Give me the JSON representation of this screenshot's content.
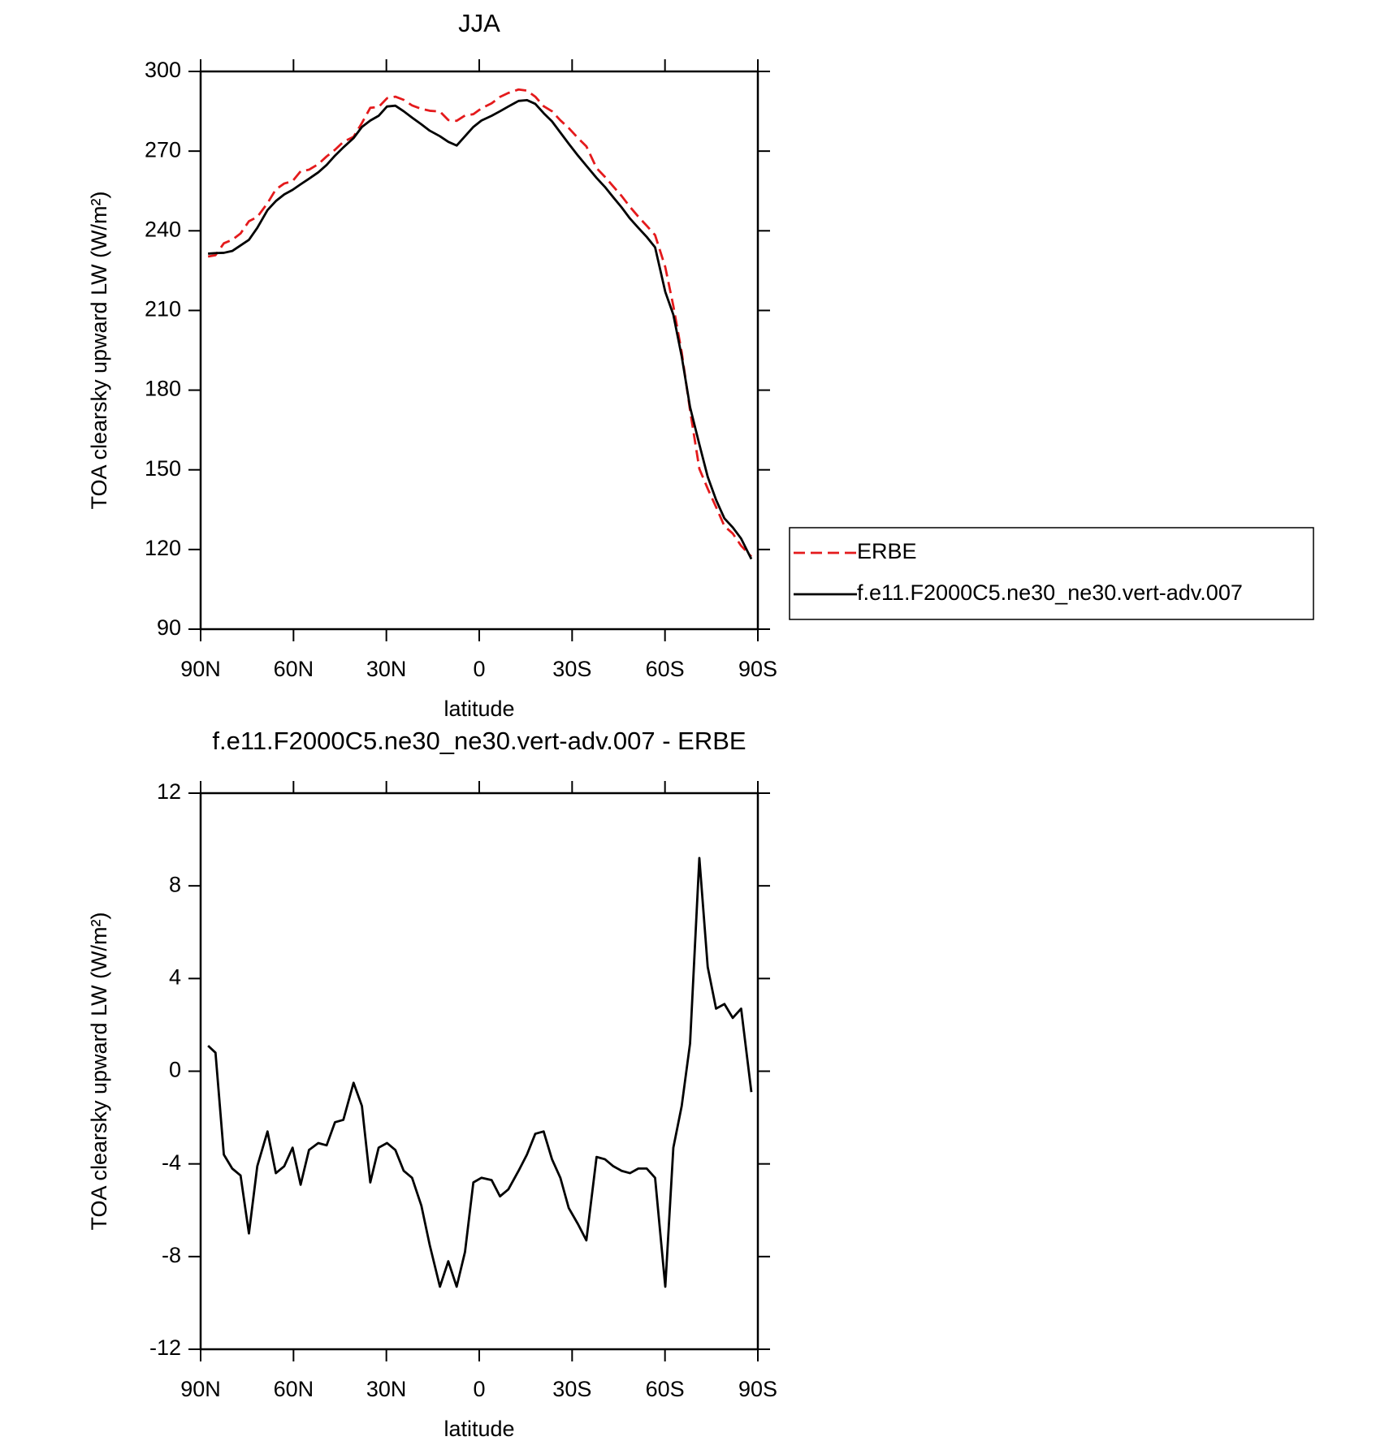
{
  "chart_data": [
    {
      "type": "line",
      "title": "JJA",
      "x_label": "latitude",
      "y_label": "TOA clearsky upward LW (W/m²)",
      "x": [
        87.6,
        85.2,
        82.5,
        79.8,
        77.1,
        74.4,
        71.7,
        68.4,
        65.7,
        63.0,
        60.3,
        57.7,
        55.0,
        52.0,
        49.3,
        46.6,
        43.9,
        40.6,
        37.9,
        35.2,
        32.5,
        29.8,
        27.1,
        24.4,
        21.7,
        18.7,
        16.0,
        12.7,
        10.0,
        7.3,
        4.6,
        1.9,
        -0.7,
        -4.0,
        -6.7,
        -9.4,
        -12.7,
        -15.4,
        -18.1,
        -20.8,
        -23.5,
        -26.2,
        -28.9,
        -31.9,
        -34.6,
        -37.9,
        -40.6,
        -43.3,
        -46.0,
        -48.7,
        -51.4,
        -54.1,
        -56.8,
        -60.1,
        -62.7,
        -65.4,
        -68.1,
        -71.1,
        -73.8,
        -76.5,
        -79.2,
        -81.9,
        -84.6,
        -87.9
      ],
      "series": [
        {
          "name": "ERBE",
          "color": "#e41a1c",
          "linestyle": "dashed",
          "values": [
            230.3,
            230.8,
            235.3,
            236.6,
            239.0,
            243.6,
            245.2,
            250.4,
            255.6,
            257.8,
            258.7,
            262.4,
            263.0,
            265.1,
            268.0,
            270.5,
            273.5,
            275.4,
            280.6,
            286.3,
            286.6,
            289.9,
            290.5,
            289.3,
            287.2,
            285.9,
            285.2,
            284.9,
            281.7,
            281.4,
            283.4,
            283.9,
            286.1,
            288.0,
            290.4,
            291.9,
            293.2,
            292.8,
            290.5,
            286.9,
            285.0,
            281.6,
            278.7,
            274.9,
            271.8,
            263.6,
            260.3,
            256.7,
            253.1,
            249.0,
            245.3,
            241.9,
            238.4,
            226.3,
            211.7,
            194.2,
            172.4,
            150.4,
            142.9,
            136.0,
            128.8,
            126.0,
            121.4,
            117.3
          ]
        },
        {
          "name": "f.e11.F2000C5.ne30_ne30.vert-adv.007",
          "color": "#000000",
          "linestyle": "solid",
          "values": [
            231.4,
            231.6,
            231.7,
            232.4,
            234.5,
            236.6,
            241.1,
            247.8,
            251.2,
            253.7,
            255.4,
            257.5,
            259.6,
            262.0,
            264.8,
            268.3,
            271.4,
            274.9,
            279.1,
            281.5,
            283.3,
            286.8,
            287.1,
            285.0,
            282.6,
            280.1,
            277.7,
            275.6,
            273.5,
            272.1,
            275.6,
            279.1,
            281.5,
            283.3,
            285.0,
            286.8,
            288.9,
            289.2,
            287.8,
            284.3,
            281.2,
            277.0,
            272.8,
            268.3,
            264.5,
            259.9,
            256.5,
            252.6,
            248.8,
            244.6,
            241.1,
            237.7,
            233.8,
            217.0,
            208.4,
            192.7,
            173.6,
            159.6,
            147.4,
            138.7,
            131.7,
            128.3,
            124.1,
            116.4
          ]
        }
      ],
      "xlim": [
        90,
        -90
      ],
      "xticks": [
        {
          "value": 90,
          "label": "90N"
        },
        {
          "value": 60,
          "label": "60N"
        },
        {
          "value": 30,
          "label": "30N"
        },
        0,
        {
          "value": -30,
          "label": "30S"
        },
        {
          "value": -60,
          "label": "60S"
        },
        {
          "value": -90,
          "label": "90S"
        }
      ],
      "ylim": [
        90,
        300
      ],
      "yticks": [
        90,
        120,
        150,
        180,
        210,
        240,
        270,
        300
      ],
      "legend": "right"
    },
    {
      "type": "line",
      "title": "f.e11.F2000C5.ne30_ne30.vert-adv.007 - ERBE",
      "x_label": "latitude",
      "y_label": "TOA clearsky upward LW (W/m²)",
      "x": [
        87.6,
        85.2,
        82.5,
        79.8,
        77.1,
        74.4,
        71.7,
        68.4,
        65.7,
        63.0,
        60.3,
        57.7,
        55.0,
        52.0,
        49.3,
        46.6,
        43.9,
        40.6,
        37.9,
        35.2,
        32.5,
        29.8,
        27.1,
        24.4,
        21.7,
        18.7,
        16.0,
        12.7,
        10.0,
        7.3,
        4.6,
        1.9,
        -0.7,
        -4.0,
        -6.7,
        -9.4,
        -12.7,
        -15.4,
        -18.1,
        -20.8,
        -23.5,
        -26.2,
        -28.9,
        -31.9,
        -34.6,
        -37.9,
        -40.6,
        -43.3,
        -46.0,
        -48.7,
        -51.4,
        -54.1,
        -56.8,
        -60.1,
        -62.7,
        -65.4,
        -68.1,
        -71.1,
        -73.8,
        -76.5,
        -79.2,
        -81.9,
        -84.6,
        -87.9
      ],
      "values": [
        1.1,
        0.8,
        -3.6,
        -4.2,
        -4.5,
        -7.0,
        -4.1,
        -2.6,
        -4.4,
        -4.1,
        -3.3,
        -4.9,
        -3.4,
        -3.1,
        -3.2,
        -2.2,
        -2.1,
        -0.5,
        -1.5,
        -4.8,
        -3.3,
        -3.1,
        -3.4,
        -4.3,
        -4.6,
        -5.8,
        -7.5,
        -9.3,
        -8.2,
        -9.3,
        -7.8,
        -4.8,
        -4.6,
        -4.7,
        -5.4,
        -5.1,
        -4.3,
        -3.6,
        -2.7,
        -2.6,
        -3.8,
        -4.6,
        -5.9,
        -6.6,
        -7.3,
        -3.7,
        -3.8,
        -4.1,
        -4.3,
        -4.4,
        -4.2,
        -4.2,
        -4.6,
        -9.3,
        -3.3,
        -1.5,
        1.2,
        9.2,
        4.5,
        2.7,
        2.9,
        2.3,
        2.7,
        -0.9
      ],
      "color": "#000000",
      "xlim": [
        90,
        -90
      ],
      "xticks": [
        {
          "value": 90,
          "label": "90N"
        },
        {
          "value": 60,
          "label": "60N"
        },
        {
          "value": 30,
          "label": "30N"
        },
        0,
        {
          "value": -30,
          "label": "30S"
        },
        {
          "value": -60,
          "label": "60S"
        },
        {
          "value": -90,
          "label": "90S"
        }
      ],
      "ylim": [
        -12,
        12
      ],
      "yticks": [
        -12,
        -8,
        -4,
        0,
        4,
        8,
        12
      ]
    }
  ]
}
